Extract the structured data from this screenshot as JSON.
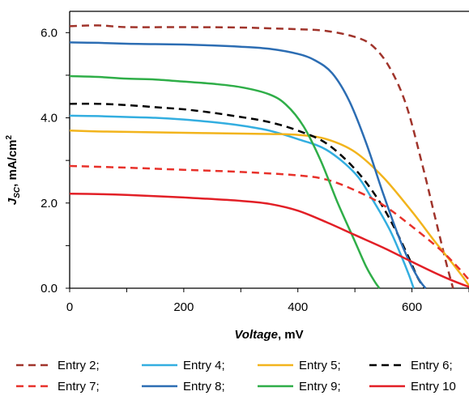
{
  "chart_data": {
    "type": "line",
    "title": "",
    "xlabel": {
      "italic_part": "Voltage",
      "rest": ", mV"
    },
    "ylabel": {
      "symbol": "J",
      "subscript": "SC",
      "rest": ", mA/cm",
      "superscript": "2"
    },
    "xlim": [
      0,
      700
    ],
    "ylim": [
      0,
      6.5
    ],
    "x_ticks": [
      0,
      200,
      400,
      600
    ],
    "x_tick_labels": [
      "0",
      "200",
      "400",
      "600"
    ],
    "y_ticks": [
      0,
      2,
      4,
      6
    ],
    "y_tick_labels": [
      "0.0",
      "2.0",
      "4.0",
      "6.0"
    ],
    "grid": false,
    "legend_position": "bottom",
    "legend_columns": 4,
    "series": [
      {
        "name": "Entry 2;",
        "color": "#A0342B",
        "dash": "dashed",
        "x": [
          0,
          50,
          100,
          200,
          300,
          350,
          400,
          450,
          500,
          530,
          560,
          590,
          620,
          640,
          660,
          672
        ],
        "y": [
          6.15,
          6.17,
          6.13,
          6.13,
          6.12,
          6.1,
          6.08,
          6.04,
          5.9,
          5.7,
          5.2,
          4.3,
          2.8,
          1.7,
          0.6,
          0
        ]
      },
      {
        "name": "Entry 4;",
        "color": "#33AEE0",
        "dash": "solid",
        "x": [
          0,
          50,
          100,
          150,
          200,
          250,
          300,
          350,
          400,
          450,
          500,
          530,
          560,
          580,
          595,
          603
        ],
        "y": [
          4.05,
          4.04,
          4.02,
          4.0,
          3.96,
          3.9,
          3.82,
          3.7,
          3.5,
          3.25,
          2.7,
          2.1,
          1.4,
          0.8,
          0.3,
          0
        ]
      },
      {
        "name": "Entry 5;",
        "color": "#F2B41C",
        "dash": "solid",
        "x": [
          0,
          50,
          100,
          200,
          300,
          350,
          400,
          450,
          500,
          550,
          600,
          640,
          670,
          690,
          703
        ],
        "y": [
          3.7,
          3.68,
          3.67,
          3.65,
          3.63,
          3.62,
          3.6,
          3.5,
          3.2,
          2.6,
          1.8,
          1.1,
          0.6,
          0.25,
          0
        ]
      },
      {
        "name": "Entry 6;",
        "color": "#000000",
        "dash": "dashed",
        "x": [
          0,
          50,
          100,
          150,
          200,
          250,
          300,
          350,
          400,
          450,
          500,
          540,
          570,
          595,
          610,
          622
        ],
        "y": [
          4.33,
          4.33,
          4.3,
          4.25,
          4.2,
          4.12,
          4.02,
          3.9,
          3.7,
          3.4,
          2.8,
          2.1,
          1.4,
          0.7,
          0.25,
          0
        ]
      },
      {
        "name": "Entry 7;",
        "color": "#E8312A",
        "dash": "dashed",
        "x": [
          0,
          100,
          200,
          300,
          400,
          450,
          500,
          550,
          600,
          650,
          680,
          700,
          715
        ],
        "y": [
          2.87,
          2.83,
          2.78,
          2.73,
          2.65,
          2.55,
          2.3,
          1.95,
          1.45,
          0.9,
          0.5,
          0.2,
          0
        ]
      },
      {
        "name": "Entry 8;",
        "color": "#2C6DB3",
        "dash": "solid",
        "x": [
          0,
          50,
          100,
          150,
          200,
          250,
          300,
          350,
          400,
          430,
          460,
          490,
          520,
          550,
          580,
          600,
          615,
          624
        ],
        "y": [
          5.77,
          5.76,
          5.74,
          5.73,
          5.72,
          5.7,
          5.67,
          5.62,
          5.5,
          5.35,
          5.05,
          4.4,
          3.4,
          2.2,
          1.1,
          0.5,
          0.15,
          0
        ]
      },
      {
        "name": "Entry 9;",
        "color": "#2FAE48",
        "dash": "solid",
        "x": [
          0,
          50,
          100,
          150,
          200,
          250,
          300,
          350,
          380,
          410,
          440,
          470,
          500,
          520,
          535,
          543
        ],
        "y": [
          4.98,
          4.96,
          4.92,
          4.9,
          4.85,
          4.8,
          4.72,
          4.55,
          4.3,
          3.8,
          3.0,
          2.0,
          1.1,
          0.5,
          0.15,
          0
        ]
      },
      {
        "name": "Entry 10",
        "color": "#E21F26",
        "dash": "solid",
        "x": [
          0,
          50,
          100,
          200,
          300,
          350,
          400,
          450,
          500,
          550,
          600,
          650,
          690,
          708
        ],
        "y": [
          2.22,
          2.21,
          2.19,
          2.13,
          2.05,
          1.98,
          1.82,
          1.55,
          1.25,
          0.95,
          0.62,
          0.3,
          0.08,
          0
        ]
      }
    ]
  }
}
